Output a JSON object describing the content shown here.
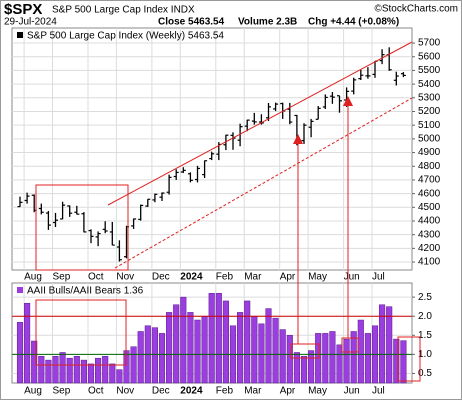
{
  "header": {
    "symbol": "$SPX",
    "name": "S&P 500 Large Cap Index INDX",
    "copyright": "©StockCharts.com",
    "date": "29-Jul-2024",
    "quote": [
      "Close 5463.54",
      "Volume 2.3B",
      "Chg +4.44 (+0.08%)"
    ]
  },
  "chart_data": [
    {
      "type": "ohlc",
      "legend": "S&P 500 Large Cap Index (Weekly) 5463.54",
      "color": "#000000",
      "categories": [
        null,
        "Aug",
        null,
        null,
        null,
        "Sep",
        null,
        null,
        null,
        null,
        "Oct",
        null,
        null,
        null,
        "Nov",
        null,
        null,
        null,
        null,
        "Dec",
        null,
        null,
        null,
        "2024",
        null,
        null,
        null,
        null,
        "Feb",
        null,
        null,
        null,
        "Mar",
        null,
        null,
        null,
        null,
        "Apr",
        null,
        null,
        null,
        "May",
        null,
        null,
        null,
        null,
        "Jun",
        null,
        null,
        null,
        "Jul",
        null,
        null,
        null,
        null
      ],
      "open": [
        4505,
        4550,
        4588,
        4491,
        4458,
        4389,
        4415,
        4510,
        4464,
        4453,
        4330,
        4284,
        4339,
        4320,
        4210,
        4139,
        4364,
        4412,
        4509,
        4554,
        4574,
        4610,
        4725,
        4758,
        4745,
        4703,
        4739,
        4856,
        4888,
        4957,
        5026,
        4990,
        5093,
        5130,
        5123,
        5154,
        5219,
        5258,
        5217,
        5171,
        4987,
        5085,
        5143,
        5233,
        5312,
        5315,
        5284,
        5349,
        5440,
        5460,
        5471,
        5572,
        5615,
        5428,
        5476
      ],
      "high": [
        4578,
        4607,
        4594,
        4527,
        4473,
        4459,
        4541,
        4514,
        4511,
        4465,
        4339,
        4324,
        4398,
        4393,
        4259,
        4365,
        4418,
        4520,
        4560,
        4600,
        4609,
        4739,
        4778,
        4793,
        4755,
        4803,
        4842,
        4907,
        4976,
        5030,
        5048,
        5111,
        5140,
        5190,
        5180,
        5262,
        5265,
        5265,
        5263,
        5175,
        5114,
        5146,
        5240,
        5325,
        5342,
        5315,
        5376,
        5447,
        5505,
        5524,
        5570,
        5655,
        5669,
        5491,
        5488
      ],
      "low": [
        4503,
        4527,
        4464,
        4448,
        4335,
        4356,
        4413,
        4430,
        4448,
        4317,
        4238,
        4216,
        4311,
        4223,
        4104,
        4127,
        4342,
        4403,
        4503,
        4537,
        4546,
        4593,
        4700,
        4751,
        4682,
        4682,
        4714,
        4845,
        4845,
        4918,
        4920,
        4946,
        5056,
        5104,
        5104,
        5130,
        5203,
        5146,
        5107,
        4953,
        4963,
        5012,
        5143,
        5218,
        5256,
        5191,
        5234,
        5325,
        5430,
        5440,
        5446,
        5546,
        5497,
        5390,
        5451
      ],
      "close": [
        4536,
        4582,
        4478,
        4464,
        4370,
        4406,
        4516,
        4457,
        4450,
        4320,
        4288,
        4308,
        4327,
        4224,
        4117,
        4358,
        4415,
        4514,
        4559,
        4595,
        4604,
        4719,
        4755,
        4770,
        4697,
        4784,
        4840,
        4891,
        4959,
        5027,
        5006,
        5089,
        5137,
        5124,
        5117,
        5234,
        5254,
        5204,
        5123,
        4967,
        5100,
        5128,
        5223,
        5303,
        5305,
        5278,
        5347,
        5431,
        5465,
        5460,
        5567,
        5615,
        5505,
        5459,
        5463.54
      ],
      "ylim": [
        4042,
        5810
      ],
      "yticks": [
        4100,
        4200,
        4300,
        4400,
        4500,
        4600,
        4700,
        4800,
        4900,
        5000,
        5100,
        5200,
        5300,
        5400,
        5500,
        5600,
        5700
      ],
      "grid": true
    },
    {
      "type": "bar",
      "legend": "AAII Bulls/AAII Bears 1.36",
      "color": "#9a3ee0",
      "categories": [
        null,
        "Aug",
        null,
        null,
        null,
        "Sep",
        null,
        null,
        null,
        null,
        "Oct",
        null,
        null,
        null,
        "Nov",
        null,
        null,
        null,
        null,
        "Dec",
        null,
        null,
        null,
        "2024",
        null,
        null,
        null,
        null,
        "Feb",
        null,
        null,
        null,
        "Mar",
        null,
        null,
        null,
        null,
        "Apr",
        null,
        null,
        null,
        "May",
        null,
        null,
        null,
        null,
        "Jun",
        null,
        null,
        null,
        "Jul",
        null,
        null,
        null,
        null
      ],
      "values": [
        1.84,
        2.34,
        1.35,
        0.95,
        0.85,
        0.95,
        1.05,
        0.9,
        0.95,
        0.85,
        0.75,
        0.9,
        0.95,
        0.75,
        0.6,
        1.1,
        1.2,
        1.6,
        1.75,
        1.7,
        1.55,
        2.1,
        2.3,
        2.5,
        2.1,
        1.9,
        2.0,
        2.6,
        2.6,
        2.4,
        1.75,
        2.1,
        2.4,
        2.0,
        1.8,
        2.2,
        1.95,
        1.65,
        1.5,
        1.05,
        0.95,
        1.1,
        1.55,
        1.55,
        1.6,
        1.25,
        1.4,
        1.6,
        1.9,
        1.55,
        1.75,
        2.3,
        2.25,
        1.4,
        1.36
      ],
      "ylim": [
        0.25,
        2.87
      ],
      "yticks": [
        0.5,
        {
          "value": 1,
          "label": "1.0"
        },
        1.5,
        {
          "value": 2,
          "label": "2.0"
        },
        2.5
      ],
      "reference_lines": [
        {
          "value": 2,
          "color": "#cc0000"
        },
        {
          "value": 1,
          "color": "#006600"
        }
      ],
      "grid": true
    }
  ]
}
